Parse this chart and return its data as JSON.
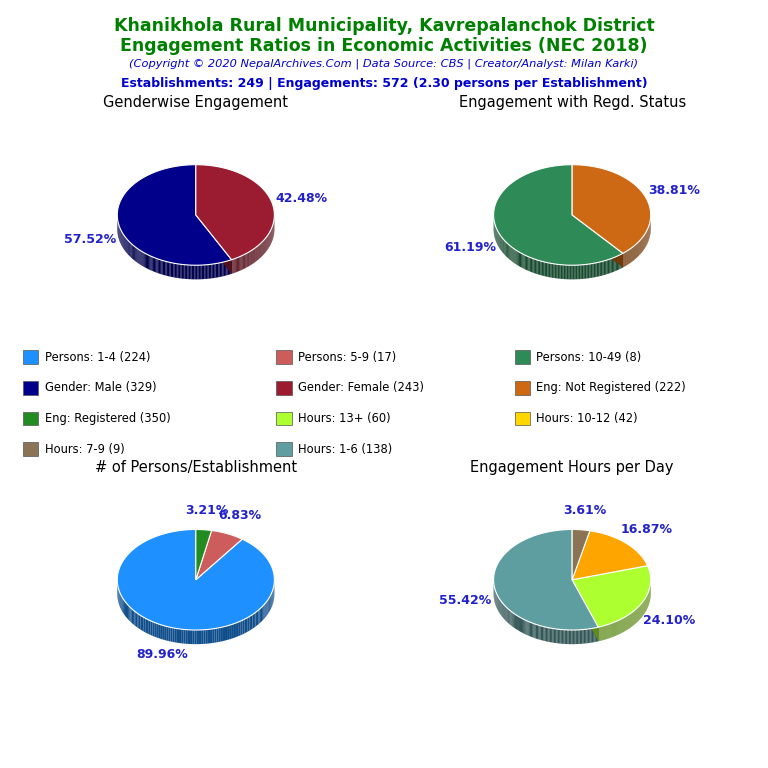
{
  "title_line1": "Khanikhola Rural Municipality, Kavrepalanchok District",
  "title_line2": "Engagement Ratios in Economic Activities (NEC 2018)",
  "copyright": "(Copyright © 2020 NepalArchives.Com | Data Source: CBS | Creator/Analyst: Milan Karki)",
  "stats": "Establishments: 249 | Engagements: 572 (2.30 persons per Establishment)",
  "title_color": "#008000",
  "copyright_color": "#0000CD",
  "stats_color": "#0000CD",
  "pie1_title": "Genderwise Engagement",
  "pie1_values": [
    57.52,
    42.48
  ],
  "pie1_colors": [
    "#00008B",
    "#9B1B30"
  ],
  "pie1_labels": [
    "57.52%",
    "42.48%"
  ],
  "pie2_title": "Engagement with Regd. Status",
  "pie2_values": [
    61.19,
    38.81
  ],
  "pie2_colors": [
    "#2E8B57",
    "#CD6914"
  ],
  "pie2_labels": [
    "61.19%",
    "38.81%"
  ],
  "pie3_title": "# of Persons/Establishment",
  "pie3_values": [
    89.96,
    6.83,
    3.21
  ],
  "pie3_colors": [
    "#1E90FF",
    "#CD5C5C",
    "#228B22"
  ],
  "pie3_labels": [
    "89.96%",
    "6.83%",
    "3.21%"
  ],
  "pie4_title": "Engagement Hours per Day",
  "pie4_values": [
    55.42,
    24.1,
    16.87,
    3.61
  ],
  "pie4_colors": [
    "#5F9EA0",
    "#ADFF2F",
    "#FFA500",
    "#8B7355"
  ],
  "pie4_labels": [
    "55.42%",
    "24.10%",
    "16.87%",
    "3.61%"
  ],
  "legend_items": [
    {
      "label": "Persons: 1-4 (224)",
      "color": "#1E90FF"
    },
    {
      "label": "Persons: 5-9 (17)",
      "color": "#CD5C5C"
    },
    {
      "label": "Persons: 10-49 (8)",
      "color": "#2E8B57"
    },
    {
      "label": "Gender: Male (329)",
      "color": "#00008B"
    },
    {
      "label": "Gender: Female (243)",
      "color": "#9B1B30"
    },
    {
      "label": "Eng: Not Registered (222)",
      "color": "#CD6914"
    },
    {
      "label": "Eng: Registered (350)",
      "color": "#228B22"
    },
    {
      "label": "Hours: 13+ (60)",
      "color": "#ADFF2F"
    },
    {
      "label": "Hours: 10-12 (42)",
      "color": "#FFD700"
    },
    {
      "label": "Hours: 7-9 (9)",
      "color": "#8B7355"
    },
    {
      "label": "Hours: 1-6 (138)",
      "color": "#5F9EA0"
    }
  ],
  "background_color": "#FFFFFF"
}
